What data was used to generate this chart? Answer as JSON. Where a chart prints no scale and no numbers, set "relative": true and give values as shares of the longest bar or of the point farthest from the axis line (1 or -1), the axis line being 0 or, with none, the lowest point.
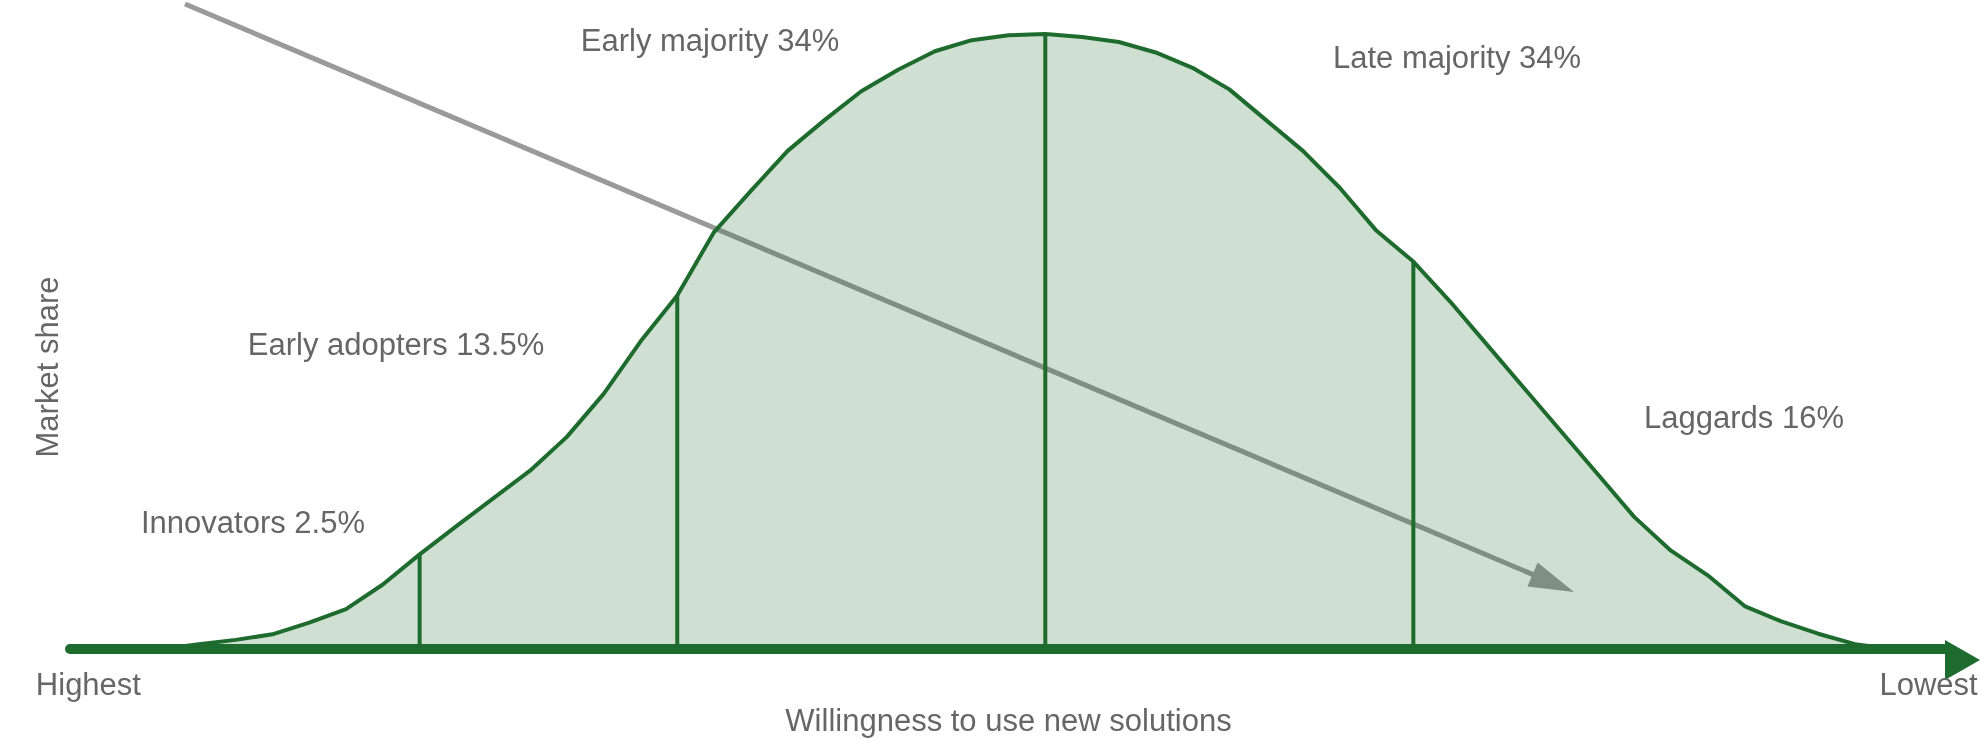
{
  "chart_data": {
    "type": "area",
    "relative": true,
    "xlabel": "Willingness to use new solutions",
    "ylabel": "Market share",
    "categories": [
      "Highest",
      null,
      null,
      null,
      null,
      null,
      null,
      null,
      null,
      null,
      null,
      null,
      null,
      null,
      null,
      null,
      null,
      null,
      null,
      null,
      null,
      null,
      null,
      null,
      null,
      null,
      null,
      null,
      null,
      null,
      null,
      null,
      null,
      null,
      null,
      null,
      null,
      null,
      null,
      null,
      null,
      null,
      null,
      null,
      null,
      null,
      null,
      null,
      null,
      null,
      "Lowest"
    ],
    "series": [
      {
        "color": "#1e6b2e",
        "values": [
          null,
          null,
          0,
          0.008,
          0.015,
          0.024,
          0.043,
          0.065,
          0.105,
          0.154,
          0.2,
          0.245,
          0.29,
          0.345,
          0.415,
          0.5,
          0.575,
          0.678,
          0.745,
          0.81,
          0.86,
          0.907,
          0.942,
          0.972,
          0.99,
          0.998,
          1,
          0.995,
          0.987,
          0.97,
          0.945,
          0.91,
          0.86,
          0.81,
          0.75,
          0.68,
          0.63,
          0.565,
          0.495,
          0.425,
          0.355,
          0.285,
          0.215,
          0.16,
          0.12,
          0.07,
          0.045,
          0.025,
          0.008,
          0,
          null
        ]
      },
      {
        "type": "bar",
        "color": "#1e6b2e",
        "values": [
          null,
          null,
          null,
          null,
          null,
          null,
          null,
          null,
          null,
          0.154,
          null,
          null,
          null,
          null,
          null,
          null,
          0.575,
          null,
          null,
          null,
          null,
          null,
          null,
          null,
          null,
          null,
          1,
          null,
          null,
          null,
          null,
          null,
          null,
          null,
          null,
          null,
          0.63,
          null,
          null,
          null,
          null,
          null,
          null,
          null,
          null,
          null,
          null,
          null,
          null,
          null,
          null
        ]
      }
    ],
    "annotations": [
      "Innovators 2.5%",
      "Early adopters 13.5%",
      "Early majority 34%",
      "Late majority 34%",
      "Laggards 16%"
    ],
    "grid": false,
    "marker": "none",
    "line_style": "solid"
  }
}
